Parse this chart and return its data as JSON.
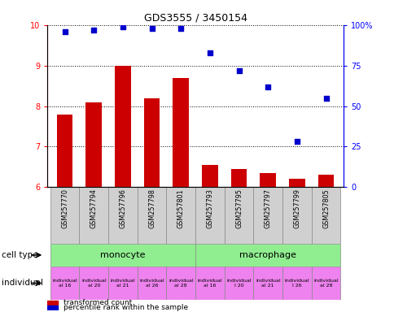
{
  "title": "GDS3555 / 3450154",
  "samples": [
    "GSM257770",
    "GSM257794",
    "GSM257796",
    "GSM257798",
    "GSM257801",
    "GSM257793",
    "GSM257795",
    "GSM257797",
    "GSM257799",
    "GSM257805"
  ],
  "bar_values": [
    7.8,
    8.1,
    9.0,
    8.2,
    8.7,
    6.55,
    6.45,
    6.35,
    6.2,
    6.3
  ],
  "scatter_values": [
    96,
    97,
    99,
    98,
    98,
    83,
    72,
    62,
    28,
    55
  ],
  "cell_type_groups": [
    {
      "label": "monocyte",
      "start": 0,
      "end": 5,
      "color": "#90EE90"
    },
    {
      "label": "macrophage",
      "start": 5,
      "end": 10,
      "color": "#90EE90"
    }
  ],
  "individual_labels": [
    "individual\nal 16",
    "individual\nal 20",
    "individual\nal 21",
    "individual\nal 26",
    "individual\nal 28",
    "individual\nal 16",
    "individual\nl 20",
    "individual\nal 21",
    "individual\nl 26",
    "individual\nal 28"
  ],
  "ylim_left": [
    6,
    10
  ],
  "ylim_right": [
    0,
    100
  ],
  "yticks_left": [
    6,
    7,
    8,
    9,
    10
  ],
  "yticks_right": [
    0,
    25,
    50,
    75,
    100
  ],
  "bar_color": "#cc0000",
  "scatter_color": "#0000cc",
  "bar_width": 0.55,
  "legend_bar_label": "transformed count",
  "legend_scatter_label": "percentile rank within the sample",
  "cell_type_row_label": "cell type",
  "individual_row_label": "individual",
  "sample_bg_color": "#d0d0d0",
  "individual_color": "#EE82EE"
}
